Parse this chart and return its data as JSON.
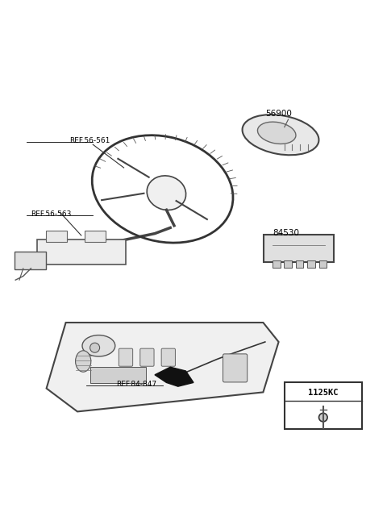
{
  "background_color": "#ffffff",
  "text_color": "#000000",
  "line_color": "#333333",
  "labels": {
    "ref_56_561": "REF.56-561",
    "ref_56_563": "REF.56-563",
    "part_56900": "56900",
    "part_84530": "84530",
    "ref_84_847": "REF.84-847",
    "part_code": "1125KC"
  }
}
